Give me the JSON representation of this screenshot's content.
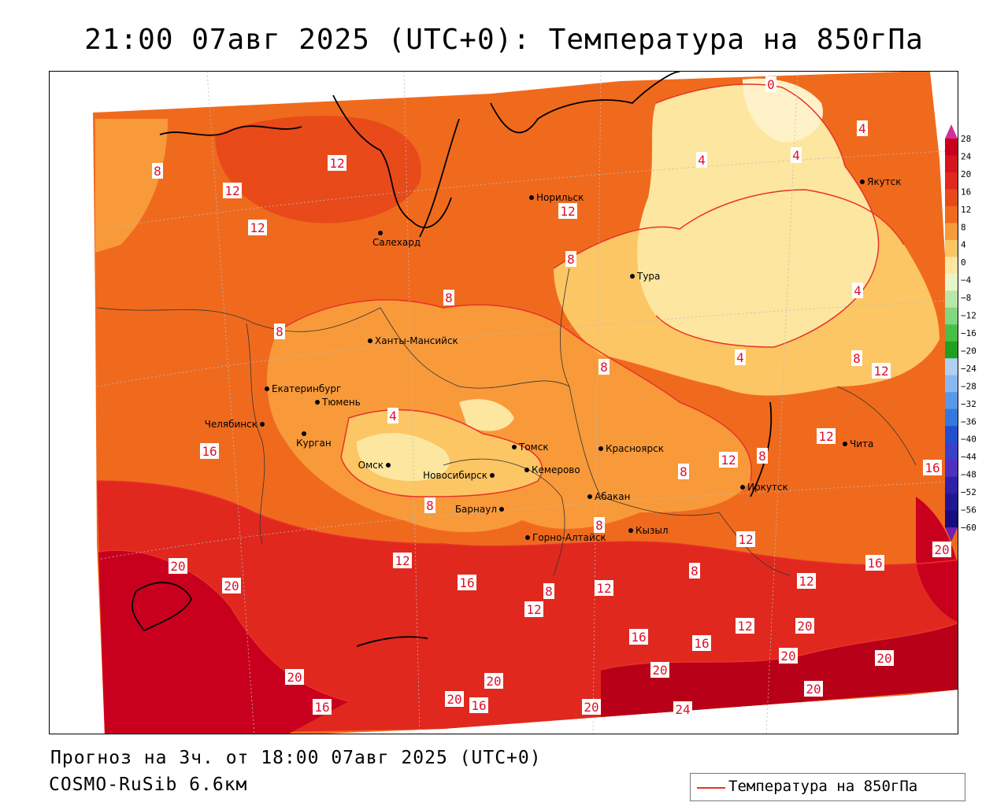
{
  "header": {
    "title": "21:00 07авг 2025 (UTC+0): Температура на 850гПа"
  },
  "footer": {
    "forecast": "Прогноз на 3ч. от 18:00 07авг 2025 (UTC+0)",
    "model": "COSMO-RuSib 6.6км"
  },
  "legend": {
    "label": "Температура на 850гПа",
    "line_color": "#e8322a"
  },
  "colorbar": {
    "ticks": [
      "28",
      "24",
      "20",
      "16",
      "12",
      "8",
      "4",
      "0",
      "−4",
      "−8",
      "−12",
      "−16",
      "−20",
      "−24",
      "−28",
      "−32",
      "−36",
      "−40",
      "−44",
      "−48",
      "−52",
      "−56",
      "−60"
    ],
    "colors": [
      "#c8001e",
      "#d4141e",
      "#e0281e",
      "#e84a1a",
      "#f06a1e",
      "#f89a3a",
      "#fcc664",
      "#fde6a0",
      "#e8f5c8",
      "#b8e8a8",
      "#80d880",
      "#48c048",
      "#20a020",
      "#b0d0f0",
      "#88b8f0",
      "#5898e8",
      "#3478e0",
      "#2050d0",
      "#3a40c8",
      "#5030c0",
      "#3020a8",
      "#201890",
      "#180c80"
    ],
    "top_arrow_color": "#d0309a",
    "bottom_arrow_color": "#7020b0"
  },
  "cities": [
    {
      "name": "Норильск"
    },
    {
      "name": "Салехард"
    },
    {
      "name": "Тура"
    },
    {
      "name": "Якутск"
    },
    {
      "name": "Ханты-Мансийск"
    },
    {
      "name": "Екатеринбург"
    },
    {
      "name": "Тюмень"
    },
    {
      "name": "Челябинск"
    },
    {
      "name": "Курган"
    },
    {
      "name": "Омск"
    },
    {
      "name": "Новосибирск"
    },
    {
      "name": "Томск"
    },
    {
      "name": "Кемерово"
    },
    {
      "name": "Красноярск"
    },
    {
      "name": "Абакан"
    },
    {
      "name": "Барнаул"
    },
    {
      "name": "Горно-Алтайск"
    },
    {
      "name": "Кызыл"
    },
    {
      "name": "Иркутск"
    },
    {
      "name": "Чита"
    }
  ],
  "isolines": [
    {
      "value": "0"
    },
    {
      "value": "4"
    },
    {
      "value": "4"
    },
    {
      "value": "8"
    },
    {
      "value": "12"
    },
    {
      "value": "12"
    },
    {
      "value": "12"
    },
    {
      "value": "12"
    },
    {
      "value": "4"
    },
    {
      "value": "8"
    },
    {
      "value": "8"
    },
    {
      "value": "4"
    },
    {
      "value": "8"
    },
    {
      "value": "8"
    },
    {
      "value": "4"
    },
    {
      "value": "8"
    },
    {
      "value": "12"
    },
    {
      "value": "4"
    },
    {
      "value": "16"
    },
    {
      "value": "12"
    },
    {
      "value": "8"
    },
    {
      "value": "12"
    },
    {
      "value": "8"
    },
    {
      "value": "16"
    },
    {
      "value": "20"
    },
    {
      "value": "20"
    },
    {
      "value": "12"
    },
    {
      "value": "16"
    },
    {
      "value": "12"
    },
    {
      "value": "12"
    },
    {
      "value": "8"
    },
    {
      "value": "12"
    },
    {
      "value": "16"
    },
    {
      "value": "20"
    },
    {
      "value": "8"
    },
    {
      "value": "12"
    },
    {
      "value": "16"
    },
    {
      "value": "16"
    },
    {
      "value": "12"
    },
    {
      "value": "20"
    },
    {
      "value": "20"
    },
    {
      "value": "20"
    },
    {
      "value": "20"
    },
    {
      "value": "20"
    },
    {
      "value": "16"
    },
    {
      "value": "20"
    },
    {
      "value": "20"
    },
    {
      "value": "16"
    },
    {
      "value": "20"
    },
    {
      "value": "24"
    },
    {
      "value": "20"
    },
    {
      "value": "8"
    },
    {
      "value": "8"
    }
  ]
}
